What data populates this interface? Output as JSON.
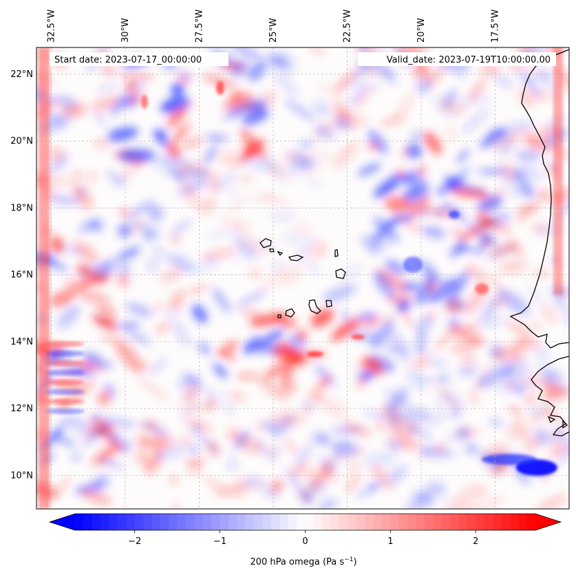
{
  "map": {
    "start_date_text": "Start date: 2023-07-17_00:00:00",
    "valid_date_text": "Valid_date: 2023-07-19T10:00:00.00",
    "extent": {
      "lon_min": -33.0,
      "lon_max": -15.0,
      "lat_min": 9.0,
      "lat_max": 22.8
    },
    "lon_ticks": [
      {
        "value": -32.5,
        "label": "32.5°W"
      },
      {
        "value": -30.0,
        "label": "30°W"
      },
      {
        "value": -27.5,
        "label": "27.5°W"
      },
      {
        "value": -25.0,
        "label": "25°W"
      },
      {
        "value": -22.5,
        "label": "22.5°W"
      },
      {
        "value": -20.0,
        "label": "20°W"
      },
      {
        "value": -17.5,
        "label": "17.5°W"
      }
    ],
    "lat_ticks": [
      {
        "value": 10,
        "label": "10°N"
      },
      {
        "value": 12,
        "label": "12°N"
      },
      {
        "value": 14,
        "label": "14°N"
      },
      {
        "value": 16,
        "label": "16°N"
      },
      {
        "value": 18,
        "label": "18°N"
      },
      {
        "value": 20,
        "label": "20°N"
      },
      {
        "value": 22,
        "label": "22°N"
      }
    ]
  },
  "colorbar": {
    "label_text": "200 hPa omega (Pa s",
    "label_superscript": "−1",
    "label_close": ")",
    "vmin": -2.7,
    "vmax": 2.7,
    "colormap": "bwr",
    "ticks": [
      {
        "value": -2,
        "label": "−2"
      },
      {
        "value": -1,
        "label": "−1"
      },
      {
        "value": 0,
        "label": "0"
      },
      {
        "value": 1,
        "label": "1"
      },
      {
        "value": 2,
        "label": "2"
      }
    ]
  },
  "colors": {
    "negative": "#0000ff",
    "zero": "#ffffff",
    "positive": "#ff0000",
    "coast": "#000000"
  }
}
